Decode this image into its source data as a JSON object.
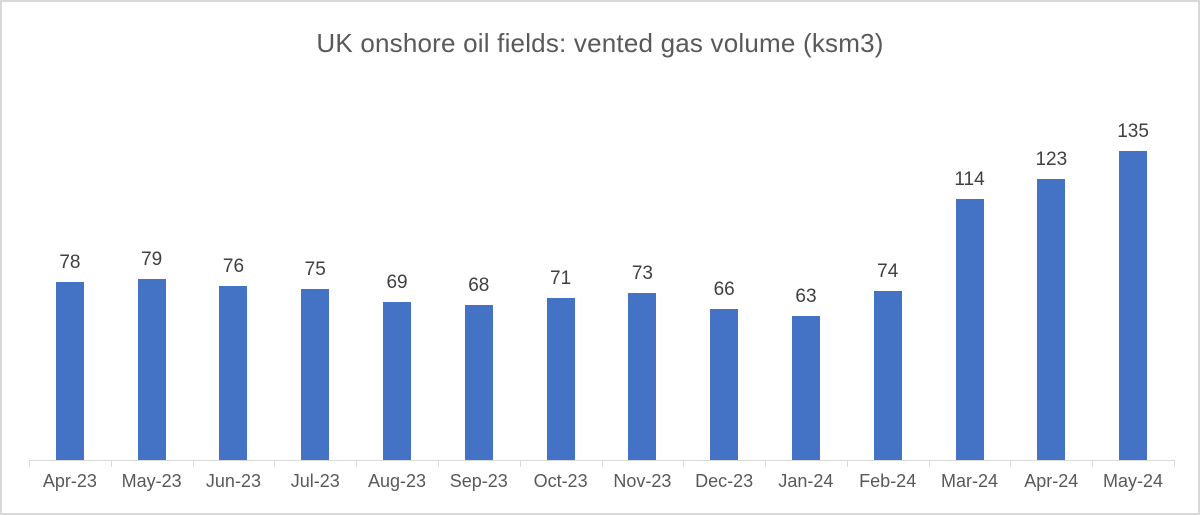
{
  "chart_data": {
    "type": "bar",
    "title": "UK onshore oil fields: vented gas volume (ksm3)",
    "categories": [
      "Apr-23",
      "May-23",
      "Jun-23",
      "Jul-23",
      "Aug-23",
      "Sep-23",
      "Oct-23",
      "Nov-23",
      "Dec-23",
      "Jan-24",
      "Feb-24",
      "Mar-24",
      "Apr-24",
      "May-24"
    ],
    "values": [
      78,
      79,
      76,
      75,
      69,
      68,
      71,
      73,
      66,
      63,
      74,
      114,
      123,
      135
    ],
    "xlabel": "",
    "ylabel": "",
    "ylim": [
      0,
      161
    ],
    "grid": false,
    "legend": "none",
    "y_axis_visible": false,
    "data_labels": true
  },
  "colors": {
    "bar": "#4472C4",
    "title_text": "#595959",
    "data_label_text": "#404040",
    "axis_label_text": "#595959",
    "axis_line": "#D9D9D9",
    "background": "#FFFFFF",
    "frame_border": "#D9D9D9"
  }
}
